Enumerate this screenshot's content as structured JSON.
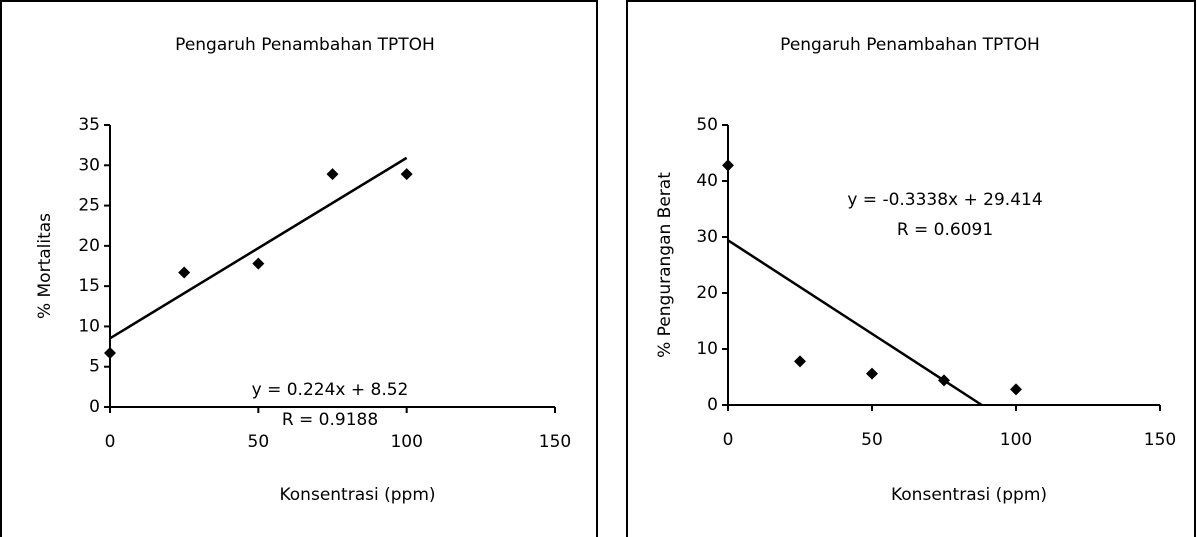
{
  "chart_data": [
    {
      "type": "scatter",
      "title": "Pengaruh Penambahan TPTOH",
      "x_label": "Konsentrasi (ppm)",
      "y_label": "% Mortalitas",
      "x": [
        0,
        25,
        50,
        75,
        100
      ],
      "values": [
        6.7,
        16.7,
        17.8,
        28.9,
        28.9
      ],
      "color": "#000000",
      "xlim": [
        0,
        150
      ],
      "xticks": [
        0,
        50,
        100,
        150
      ],
      "ylim": [
        0,
        35
      ],
      "yticks": [
        0,
        5,
        10,
        15,
        20,
        25,
        30,
        35
      ],
      "trendline": {
        "slope": 0.224,
        "intercept": 8.52
      },
      "annotations": [
        "y = 0.224x + 8.52",
        "R = 0.9188"
      ]
    },
    {
      "type": "scatter",
      "title": "Pengaruh Penambahan TPTOH",
      "x_label": "Konsentrasi (ppm)",
      "y_label": "% Pengurangan Berat",
      "x": [
        0,
        25,
        50,
        75,
        100
      ],
      "values": [
        42.8,
        7.8,
        5.6,
        4.4,
        2.8
      ],
      "color": "#000000",
      "xlim": [
        0,
        150
      ],
      "xticks": [
        0,
        50,
        100,
        150
      ],
      "ylim": [
        0,
        50
      ],
      "yticks": [
        0,
        10,
        20,
        30,
        40,
        50
      ],
      "trendline": {
        "slope": -0.3338,
        "intercept": 29.414
      },
      "annotations": [
        "y = -0.3338x + 29.414",
        "R = 0.6091"
      ]
    }
  ]
}
